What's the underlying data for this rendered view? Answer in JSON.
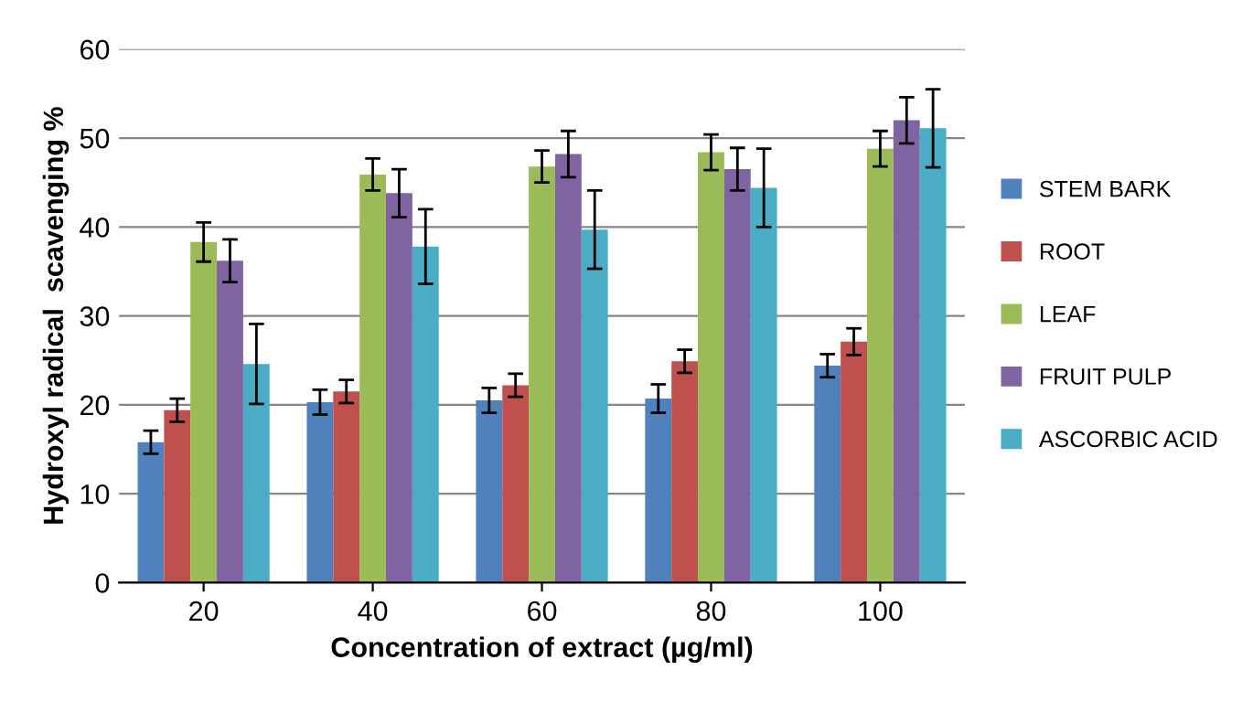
{
  "chart_data": {
    "type": "bar",
    "xlabel": "Concentration of extract (µg/ml)",
    "ylabel": "Hydroxyl radical  scavenging %",
    "categories": [
      "20",
      "40",
      "60",
      "80",
      "100"
    ],
    "series": [
      {
        "name": "STEM BARK",
        "color": "#4f81bd",
        "values": [
          15.8,
          20.3,
          20.5,
          20.7,
          24.4
        ],
        "errors": [
          1.3,
          1.4,
          1.4,
          1.6,
          1.3
        ]
      },
      {
        "name": "ROOT",
        "color": "#c0504d",
        "values": [
          19.4,
          21.5,
          22.2,
          24.9,
          27.1
        ],
        "errors": [
          1.3,
          1.3,
          1.3,
          1.3,
          1.5
        ]
      },
      {
        "name": "LEAF",
        "color": "#9bbb59",
        "values": [
          38.3,
          45.9,
          46.8,
          48.4,
          48.8
        ],
        "errors": [
          2.2,
          1.8,
          1.8,
          2.0,
          2.0
        ]
      },
      {
        "name": "FRUIT PULP",
        "color": "#8064a2",
        "values": [
          36.2,
          43.8,
          48.2,
          46.5,
          52.0
        ],
        "errors": [
          2.4,
          2.7,
          2.6,
          2.4,
          2.6
        ]
      },
      {
        "name": "ASCORBIC ACID",
        "color": "#4bacc6",
        "values": [
          24.6,
          37.8,
          39.7,
          44.4,
          51.1
        ],
        "errors": [
          4.5,
          4.2,
          4.4,
          4.4,
          4.4
        ]
      }
    ],
    "ylim": [
      0,
      60
    ],
    "yticks": [
      0,
      10,
      20,
      30,
      40,
      50,
      60
    ],
    "grid": "y",
    "legend": "right"
  }
}
